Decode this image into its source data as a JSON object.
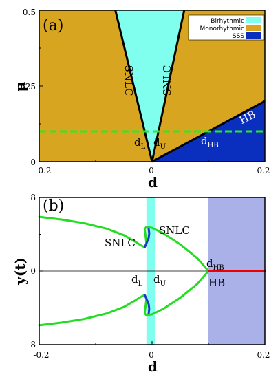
{
  "colors": {
    "birhythmic": "#80ffee",
    "monorhythmic": "#d8a520",
    "sss": "#0a2fbf",
    "hb_band": "#aab0e8",
    "limit_cycle": "#22dd22",
    "unstable_branch": "#1a3acc",
    "steady_state": "#ee0000",
    "dashed_line": "#22ee22"
  },
  "chart_data": [
    {
      "type": "area",
      "panel_label": "(a)",
      "xlabel": "d",
      "ylabel": "μ",
      "xlim": [
        -0.2,
        0.2
      ],
      "ylim": [
        0,
        0.5
      ],
      "xticks": [
        "-0.2",
        "0",
        "0.2"
      ],
      "yticks": [
        "0",
        "0.25",
        "0.5"
      ],
      "legend": {
        "placement": "top-right",
        "entries": [
          "Birhythmic",
          "Monorhythmic",
          "SSS"
        ]
      },
      "regions": [
        {
          "name": "Monorhythmic",
          "polygon": [
            [
              -0.2,
              0
            ],
            [
              0.2,
              0
            ],
            [
              0.2,
              0.5
            ],
            [
              -0.2,
              0.5
            ]
          ]
        },
        {
          "name": "Birhythmic",
          "polygon": [
            [
              0,
              0
            ],
            [
              -0.065,
              0.5
            ],
            [
              0.057,
              0.5
            ]
          ]
        },
        {
          "name": "SSS",
          "polygon": [
            [
              0,
              0
            ],
            [
              0.2,
              0.2
            ],
            [
              0.2,
              0
            ]
          ]
        }
      ],
      "boundaries": [
        {
          "label": "SNLC",
          "x": [
            0,
            -0.065
          ],
          "y": [
            0,
            0.5
          ]
        },
        {
          "label": "SNLC",
          "x": [
            0,
            0.057
          ],
          "y": [
            0,
            0.5
          ]
        },
        {
          "label": "HB",
          "x": [
            0,
            0.2
          ],
          "y": [
            0,
            0.2
          ]
        }
      ],
      "dashed_line": {
        "mu": 0.1
      },
      "annotations": {
        "snlc_left": "SNLC",
        "snlc_right": "SNLC",
        "hb": "HB",
        "dl": "d",
        "dl_sub": "L",
        "du": "d",
        "du_sub": "U",
        "dhb": "d",
        "dhb_sub": "HB"
      }
    },
    {
      "type": "line",
      "panel_label": "(b)",
      "xlabel": "d",
      "ylabel": "y(t)",
      "xlim": [
        -0.2,
        0.2
      ],
      "ylim": [
        -8,
        8
      ],
      "xticks": [
        "-0.2",
        "0",
        "0.2"
      ],
      "yticks": [
        "8",
        "0",
        "-8"
      ],
      "bands": [
        {
          "name": "Birhythmic",
          "x": [
            -0.01,
            0.005
          ]
        },
        {
          "name": "SSS",
          "x": [
            0.1,
            0.2
          ]
        }
      ],
      "series": [
        {
          "name": "stable limit cycle (upper)",
          "x": [
            -0.2,
            -0.16,
            -0.12,
            -0.08,
            -0.05,
            -0.03,
            -0.02,
            -0.013,
            -0.01,
            -0.013,
            -0.01,
            0.0,
            0.02,
            0.05,
            0.08,
            0.1
          ],
          "y": [
            5.9,
            5.6,
            5.2,
            4.6,
            3.9,
            3.2,
            2.8,
            2.6,
            3.0,
            4.6,
            4.8,
            4.7,
            4.1,
            2.9,
            1.4,
            0
          ]
        },
        {
          "name": "stable limit cycle (lower)",
          "x": [
            -0.2,
            -0.16,
            -0.12,
            -0.08,
            -0.05,
            -0.03,
            -0.02,
            -0.013,
            -0.01,
            -0.013,
            -0.01,
            0.0,
            0.02,
            0.05,
            0.08,
            0.1
          ],
          "y": [
            -5.9,
            -5.6,
            -5.2,
            -4.6,
            -3.9,
            -3.2,
            -2.8,
            -2.6,
            -3.0,
            -4.6,
            -4.8,
            -4.7,
            -4.1,
            -2.9,
            -1.4,
            0
          ]
        },
        {
          "name": "unstable branch (upper)",
          "x": [
            -0.013,
            -0.01,
            -0.006,
            -0.005,
            -0.006
          ],
          "y": [
            2.6,
            3.0,
            3.6,
            4.1,
            4.6
          ]
        },
        {
          "name": "unstable branch (lower)",
          "x": [
            -0.013,
            -0.01,
            -0.006,
            -0.005,
            -0.006
          ],
          "y": [
            -2.6,
            -3.0,
            -3.6,
            -4.1,
            -4.6
          ]
        },
        {
          "name": "steady state",
          "x": [
            0.1,
            0.2
          ],
          "y": [
            0,
            0
          ]
        }
      ],
      "reference_line": {
        "y": 0
      },
      "annotations": {
        "snlc_top": "SNLC",
        "snlc_bottom": "SNLC",
        "hb": "HB",
        "dl": "d",
        "dl_sub": "L",
        "du": "d",
        "du_sub": "U",
        "dhb": "d",
        "dhb_sub": "HB"
      }
    }
  ]
}
